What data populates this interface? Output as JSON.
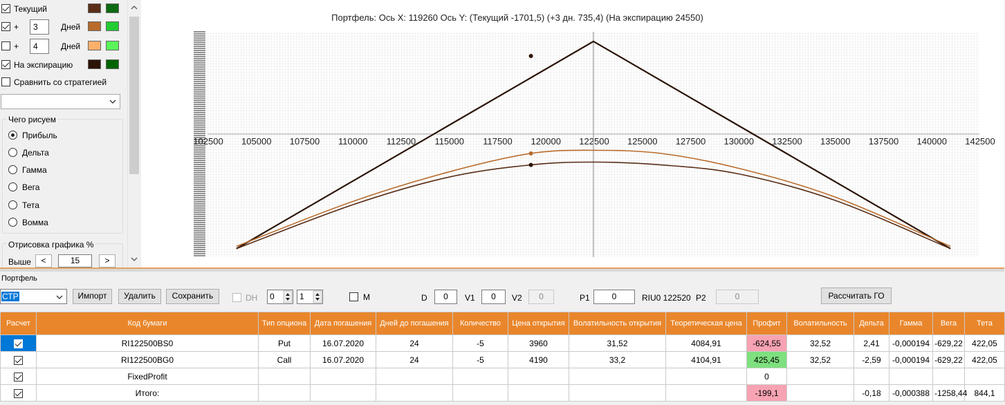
{
  "left_panel": {
    "current": {
      "label": "Текущий",
      "checked": true,
      "colors": [
        "#5a2e18",
        "#0c6a12"
      ]
    },
    "plus1": {
      "plus": "+",
      "days": "3",
      "days_label": "Дней",
      "checked": true,
      "colors": [
        "#b86b2c",
        "#22cc33"
      ]
    },
    "plus2": {
      "plus": "+",
      "days": "4",
      "days_label": "Дней",
      "checked": false,
      "colors": [
        "#fcb06b",
        "#5af55a"
      ]
    },
    "expiration": {
      "label": "На экспирацию",
      "checked": true,
      "colors": [
        "#2b1406",
        "#006400"
      ]
    },
    "compare": {
      "label": "Сравнить со стратегией",
      "checked": false
    },
    "draw_group": {
      "title": "Чего рисуем",
      "options": [
        "Прибыль",
        "Дельта",
        "Гамма",
        "Вега",
        "Тета",
        "Вомма"
      ],
      "selected": 0
    },
    "render_group": {
      "title": "Отрисовка графика %",
      "above_label": "Выше",
      "value": "15",
      "dec": "<",
      "inc": ">"
    }
  },
  "chart": {
    "title": "Портфель: Ось X: 119260 Ось Y:  (Текущий -1701,5)  (+3 дн. 735,4)  (На экспирацию 24550)",
    "x_ticks": [
      "102500",
      "105000",
      "107500",
      "110000",
      "112500",
      "115000",
      "117500",
      "120000",
      "122500",
      "125000",
      "127500",
      "130000",
      "132500",
      "135000",
      "137500",
      "140000",
      "142500"
    ]
  },
  "chart_data": {
    "type": "line",
    "x_range": [
      102500,
      142500
    ],
    "cursor_x": 122500,
    "series": [
      {
        "color": "#2b1406",
        "x": [
          104000,
          122500,
          141000
        ],
        "y": [
          -19500,
          24550,
          -19500
        ]
      },
      {
        "color": "#b86b2c",
        "x": [
          104000,
          110000,
          115000,
          119260,
          122500,
          126000,
          130000,
          135000,
          141000
        ],
        "y": [
          -19000,
          -9500,
          -3200,
          735.4,
          1400,
          735.4,
          -2400,
          -8500,
          -19000
        ]
      },
      {
        "color": "#5a2e18",
        "x": [
          104000,
          110000,
          115000,
          119260,
          122500,
          126000,
          130000,
          135000,
          141000
        ],
        "y": [
          -19500,
          -10200,
          -4300,
          -1701.5,
          -1100,
          -1701.5,
          -3600,
          -9200,
          -19500
        ]
      }
    ]
  },
  "toolbar": {
    "portfolio_label": "Портфель",
    "strategy": "СТР",
    "import": "Импорт",
    "delete": "Удалить",
    "save": "Сохранить",
    "dh_label": "DH",
    "spin1": "0",
    "spin2": "1",
    "m_label": "M",
    "d_label": "D",
    "d_value": "0",
    "v1_label": "V1",
    "v1_value": "0",
    "v2_label": "V2",
    "v2_value": "0",
    "p1_label": "P1",
    "p1_value": "0",
    "riu_label": "RIU0 122520",
    "p2_label": "P2",
    "p2_value": "0",
    "calc_go": "Рассчитать ГО"
  },
  "table": {
    "headers": [
      "Расчет",
      "Код бумаги",
      "Тип опциона",
      "Дата погашения",
      "Дней до погашения",
      "Количество",
      "Цена открытия",
      "Волатильность открытия",
      "Теоретическая цена",
      "Профит",
      "Волатильность",
      "Дельта",
      "Гамма",
      "Вега",
      "Тета"
    ],
    "rows": [
      [
        "",
        "RI122500BS0",
        "Put",
        "16.07.2020",
        "24",
        "-5",
        "3960",
        "31,52",
        "4084,91",
        "-624,55",
        "32,52",
        "2,41",
        "-0,000194",
        "-629,22",
        "422,05"
      ],
      [
        "",
        "RI122500BG0",
        "Call",
        "16.07.2020",
        "24",
        "-5",
        "4190",
        "33,2",
        "4104,91",
        "425,45",
        "32,52",
        "-2,59",
        "-0,000194",
        "-629,22",
        "422,05"
      ],
      [
        "",
        "FixedProfit",
        "",
        "",
        "",
        "",
        "",
        "",
        "",
        "0",
        "",
        "",
        "",
        "",
        ""
      ],
      [
        "",
        "Итого:",
        "",
        "",
        "",
        "",
        "",
        "",
        "",
        "-199,1",
        "",
        "-0,18",
        "-0,000388",
        "-1258,44",
        "844,1"
      ]
    ]
  }
}
